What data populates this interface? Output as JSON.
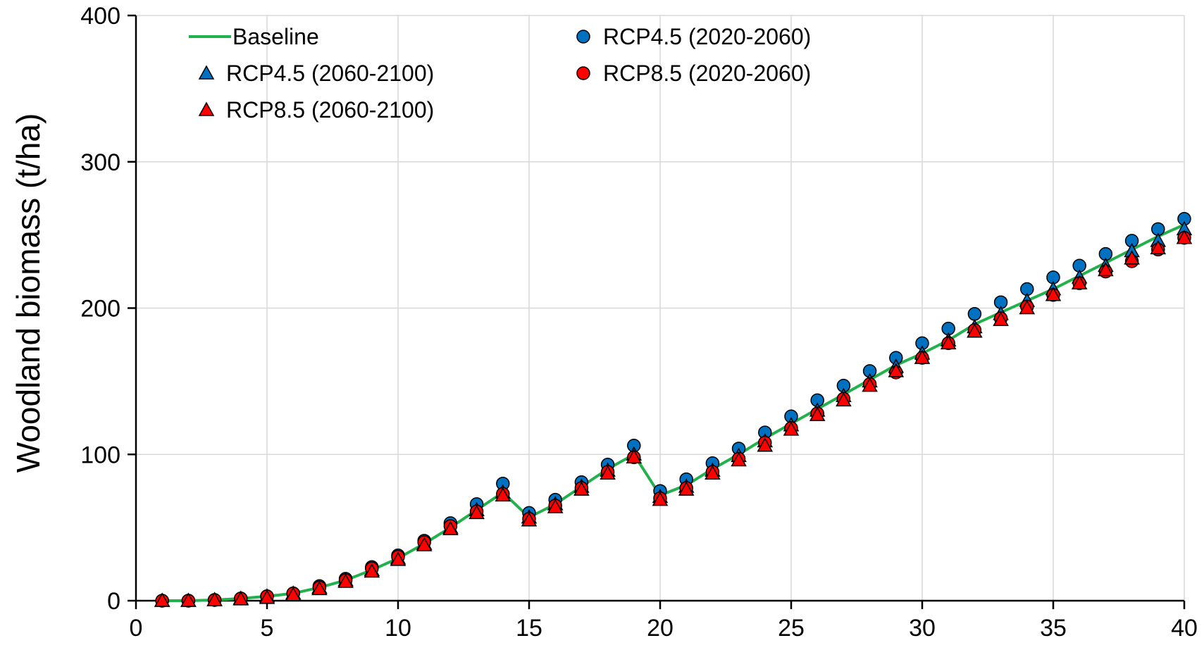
{
  "chart_data": {
    "type": "line",
    "title": "",
    "xlabel": "",
    "ylabel": "Woodland biomass (t/ha)",
    "xlim": [
      0,
      40
    ],
    "ylim": [
      0,
      400
    ],
    "x_ticks": [
      "0",
      "5",
      "10",
      "15",
      "20",
      "25",
      "30",
      "35",
      "40"
    ],
    "y_ticks": [
      "0",
      "100",
      "200",
      "300",
      "400"
    ],
    "grid": true,
    "legend_position": "top-left",
    "x": [
      1,
      2,
      3,
      4,
      5,
      6,
      7,
      8,
      9,
      10,
      11,
      12,
      13,
      14,
      15,
      16,
      17,
      18,
      19,
      20,
      21,
      22,
      23,
      24,
      25,
      26,
      27,
      28,
      29,
      30,
      31,
      32,
      33,
      34,
      35,
      36,
      37,
      38,
      39,
      40
    ],
    "series": [
      {
        "name": "Baseline",
        "marker": "line",
        "color": "#22b14c",
        "values": [
          0,
          0,
          0.5,
          1.5,
          3,
          5,
          9,
          14,
          21,
          29,
          39,
          50,
          62,
          74,
          57,
          66,
          78,
          90,
          100,
          72,
          79,
          90,
          100,
          111,
          121,
          131,
          141,
          151,
          161,
          169,
          178,
          189,
          197,
          205,
          213,
          222,
          231,
          240,
          249,
          257
        ]
      },
      {
        "name": "RCP4.5 (2020-2060)",
        "marker": "circle",
        "color": "#0070c0",
        "values": [
          0,
          0,
          0.5,
          1.5,
          3,
          5,
          10,
          15,
          23,
          31,
          41,
          53,
          66,
          80,
          60,
          69,
          81,
          93,
          106,
          75,
          83,
          94,
          104,
          115,
          126,
          137,
          147,
          157,
          166,
          176,
          186,
          196,
          204,
          213,
          221,
          229,
          237,
          246,
          254,
          261
        ]
      },
      {
        "name": "RCP4.5 (2060-2100)",
        "marker": "triangle",
        "color": "#0070c0",
        "values": [
          0,
          0,
          0.5,
          1.5,
          3,
          5,
          9,
          14,
          21,
          29,
          39,
          50,
          62,
          74,
          57,
          66,
          78,
          89,
          100,
          71,
          78,
          89,
          99,
          109,
          120,
          130,
          140,
          150,
          160,
          169,
          178,
          187,
          196,
          205,
          213,
          221,
          229,
          239,
          246,
          254
        ]
      },
      {
        "name": "RCP8.5 (2020-2060)",
        "marker": "circle",
        "color": "#ff0000",
        "values": [
          0,
          0,
          0.5,
          1.5,
          3,
          5,
          9,
          14,
          22,
          30,
          40,
          51,
          61,
          73,
          56,
          65,
          77,
          88,
          98,
          70,
          77,
          88,
          97,
          108,
          118,
          128,
          138,
          148,
          156,
          166,
          176,
          185,
          193,
          201,
          209,
          217,
          225,
          232,
          240,
          248
        ]
      },
      {
        "name": "RCP8.5 (2060-2100)",
        "marker": "triangle",
        "color": "#ff0000",
        "values": [
          0,
          0,
          0.5,
          1,
          2,
          4,
          8,
          13,
          20,
          28,
          38,
          49,
          60,
          72,
          55,
          64,
          76,
          87,
          98,
          69,
          76,
          87,
          96,
          106,
          117,
          127,
          137,
          147,
          157,
          166,
          176,
          184,
          192,
          200,
          209,
          217,
          226,
          234,
          241,
          248
        ]
      }
    ]
  }
}
